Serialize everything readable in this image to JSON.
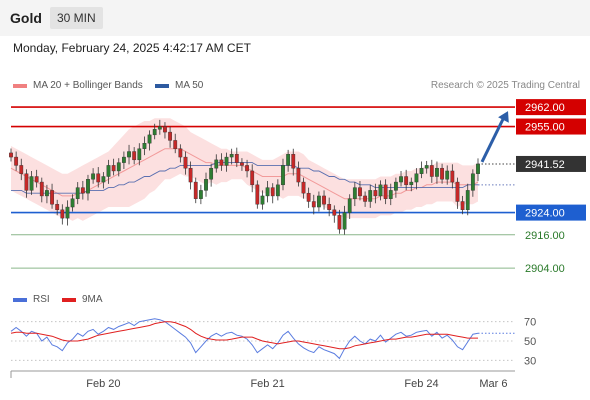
{
  "header": {
    "title": "Gold",
    "timeframe": "30 MIN"
  },
  "timestamp": "Monday, February 24, 2025 4:42:17 AM CET",
  "legend": {
    "items": [
      {
        "label": "MA 20 + Bollinger Bands",
        "color": "#f08080"
      },
      {
        "label": "MA 50",
        "color": "#2d5aa0"
      }
    ],
    "credit": "Research © 2025 Trading Central"
  },
  "rsi_legend": {
    "items": [
      {
        "label": "RSI",
        "color": "#4a6fd8"
      },
      {
        "label": "9MA",
        "color": "#e02020"
      }
    ]
  },
  "chart_data": [
    {
      "type": "candlestick",
      "price_range": [
        2899,
        2966
      ],
      "last_price": "2941.52",
      "levels": [
        {
          "value": 2962.0,
          "label": "2962.00",
          "kind": "resistance",
          "color": "#d40000"
        },
        {
          "value": 2955.0,
          "label": "2955.00",
          "kind": "resistance",
          "color": "#d40000"
        },
        {
          "value": 2924.0,
          "label": "2924.00",
          "kind": "pivot",
          "color": "#1e5fd0"
        },
        {
          "value": 2916.0,
          "label": "2916.00",
          "kind": "support",
          "color": "#2a7a2a"
        },
        {
          "value": 2904.0,
          "label": "2904.00",
          "kind": "support",
          "color": "#2a7a2a"
        }
      ],
      "forecast": {
        "from": 2941.52,
        "to": 2962.0,
        "direction": "up"
      },
      "x_ticks": [
        "Feb 20",
        "Feb 21",
        "Feb 24",
        "Mar 6"
      ],
      "x_tick_index": [
        18,
        50,
        80,
        94
      ],
      "closes": [
        2944,
        2941,
        2938,
        2932,
        2937,
        2935,
        2930,
        2932,
        2927,
        2925,
        2922,
        2926,
        2929,
        2933,
        2931,
        2936,
        2938,
        2935,
        2937,
        2941,
        2939,
        2942,
        2944,
        2946,
        2943,
        2947,
        2949,
        2952,
        2954,
        2955,
        2953,
        2950,
        2947,
        2944,
        2940,
        2935,
        2929,
        2932,
        2936,
        2940,
        2943,
        2941,
        2944,
        2945,
        2942,
        2941,
        2939,
        2934,
        2927,
        2930,
        2933,
        2930,
        2934,
        2941,
        2945,
        2940,
        2935,
        2931,
        2928,
        2926,
        2930,
        2927,
        2925,
        2923,
        2918,
        2924,
        2929,
        2933,
        2930,
        2928,
        2932,
        2930,
        2934,
        2929,
        2932,
        2935,
        2937,
        2934,
        2935,
        2938,
        2940,
        2941,
        2937,
        2940,
        2936,
        2939,
        2935,
        2928,
        2925,
        2932,
        2938,
        2941.52
      ],
      "ma20": [
        2940,
        2939,
        2938,
        2937,
        2936,
        2935,
        2934,
        2933,
        2932,
        2931,
        2930,
        2930,
        2930,
        2931,
        2931,
        2932,
        2933,
        2934,
        2935,
        2936,
        2937,
        2938,
        2939,
        2940,
        2941,
        2942,
        2943,
        2944,
        2945,
        2946,
        2947,
        2947,
        2947,
        2947,
        2946,
        2945,
        2944,
        2943,
        2942,
        2942,
        2941,
        2941,
        2941,
        2941,
        2941,
        2941,
        2940,
        2939,
        2938,
        2937,
        2937,
        2937,
        2937,
        2937,
        2938,
        2938,
        2938,
        2937,
        2936,
        2935,
        2934,
        2933,
        2932,
        2931,
        2930,
        2929,
        2929,
        2929,
        2929,
        2929,
        2929,
        2929,
        2930,
        2930,
        2930,
        2931,
        2931,
        2932,
        2932,
        2933,
        2933,
        2934,
        2934,
        2935,
        2935,
        2935,
        2935,
        2934,
        2934,
        2934,
        2934,
        2935
      ],
      "bb_upper": [
        2948,
        2947,
        2946,
        2945,
        2944,
        2943,
        2942,
        2941,
        2940,
        2939,
        2938,
        2938,
        2939,
        2940,
        2941,
        2942,
        2943,
        2944,
        2945,
        2946,
        2948,
        2950,
        2952,
        2954,
        2955,
        2956,
        2957,
        2957,
        2958,
        2958,
        2958,
        2958,
        2957,
        2956,
        2955,
        2953,
        2952,
        2951,
        2950,
        2949,
        2948,
        2947,
        2947,
        2946,
        2946,
        2946,
        2946,
        2945,
        2944,
        2943,
        2943,
        2943,
        2944,
        2945,
        2946,
        2946,
        2946,
        2945,
        2943,
        2942,
        2941,
        2940,
        2939,
        2938,
        2937,
        2936,
        2936,
        2936,
        2936,
        2936,
        2936,
        2936,
        2937,
        2937,
        2937,
        2938,
        2938,
        2939,
        2939,
        2940,
        2940,
        2941,
        2941,
        2942,
        2942,
        2942,
        2942,
        2942,
        2941,
        2941,
        2941,
        2942
      ],
      "bb_lower": [
        2932,
        2931,
        2930,
        2929,
        2928,
        2927,
        2926,
        2925,
        2924,
        2923,
        2922,
        2922,
        2921,
        2922,
        2921,
        2922,
        2923,
        2924,
        2925,
        2926,
        2926,
        2926,
        2926,
        2926,
        2927,
        2928,
        2929,
        2931,
        2932,
        2934,
        2936,
        2936,
        2937,
        2938,
        2937,
        2937,
        2936,
        2935,
        2934,
        2935,
        2934,
        2935,
        2935,
        2936,
        2936,
        2936,
        2934,
        2933,
        2932,
        2931,
        2931,
        2931,
        2930,
        2929,
        2930,
        2930,
        2930,
        2929,
        2929,
        2928,
        2927,
        2926,
        2925,
        2924,
        2923,
        2922,
        2922,
        2922,
        2922,
        2922,
        2922,
        2922,
        2923,
        2923,
        2923,
        2924,
        2924,
        2925,
        2925,
        2926,
        2926,
        2927,
        2927,
        2928,
        2928,
        2928,
        2928,
        2926,
        2927,
        2927,
        2927,
        2928
      ],
      "ma50": [
        2932,
        2932,
        2932,
        2931,
        2931,
        2931,
        2931,
        2931,
        2931,
        2931,
        2931,
        2931,
        2931,
        2931,
        2931,
        2932,
        2932,
        2932,
        2932,
        2933,
        2933,
        2934,
        2934,
        2935,
        2935,
        2936,
        2937,
        2937,
        2938,
        2939,
        2939,
        2940,
        2940,
        2941,
        2941,
        2941,
        2941,
        2941,
        2941,
        2941,
        2942,
        2942,
        2942,
        2942,
        2942,
        2942,
        2942,
        2942,
        2941,
        2941,
        2941,
        2941,
        2941,
        2941,
        2941,
        2941,
        2940,
        2940,
        2940,
        2939,
        2939,
        2938,
        2937,
        2937,
        2936,
        2936,
        2935,
        2935,
        2934,
        2934,
        2934,
        2933,
        2933,
        2933,
        2933,
        2933,
        2933,
        2933,
        2933,
        2933,
        2933,
        2933,
        2933,
        2933,
        2933,
        2933,
        2933,
        2933,
        2933,
        2934,
        2934,
        2934
      ]
    },
    {
      "type": "line",
      "name": "RSI",
      "y_ticks": [
        30,
        50,
        70
      ],
      "y_range": [
        20,
        80
      ],
      "rsi": [
        60,
        64,
        60,
        55,
        60,
        58,
        50,
        54,
        46,
        44,
        40,
        48,
        52,
        58,
        55,
        60,
        62,
        57,
        60,
        64,
        62,
        65,
        67,
        69,
        66,
        70,
        71,
        72,
        73,
        72,
        70,
        66,
        62,
        58,
        54,
        48,
        38,
        44,
        50,
        55,
        58,
        55,
        58,
        59,
        56,
        55,
        52,
        46,
        38,
        42,
        46,
        42,
        48,
        56,
        60,
        53,
        47,
        43,
        40,
        38,
        44,
        41,
        39,
        37,
        32,
        42,
        50,
        55,
        50,
        47,
        52,
        50,
        56,
        49,
        53,
        57,
        59,
        55,
        56,
        59,
        60,
        61,
        55,
        59,
        53,
        56,
        51,
        44,
        41,
        49,
        57,
        58
      ],
      "ma9": [
        58,
        59,
        59,
        58,
        58,
        58,
        57,
        56,
        55,
        53,
        51,
        50,
        50,
        50,
        51,
        52,
        54,
        56,
        57,
        58,
        59,
        60,
        61,
        62,
        63,
        64,
        65,
        66,
        68,
        69,
        70,
        70,
        69,
        67,
        65,
        62,
        58,
        55,
        53,
        52,
        51,
        51,
        51,
        52,
        53,
        54,
        54,
        54,
        52,
        50,
        49,
        48,
        47,
        48,
        49,
        50,
        50,
        49,
        48,
        47,
        46,
        45,
        44,
        43,
        42,
        42,
        43,
        45,
        46,
        47,
        48,
        49,
        50,
        51,
        52,
        52,
        53,
        54,
        54,
        55,
        56,
        57,
        57,
        57,
        57,
        57,
        56,
        55,
        54,
        53,
        53,
        53
      ]
    }
  ]
}
